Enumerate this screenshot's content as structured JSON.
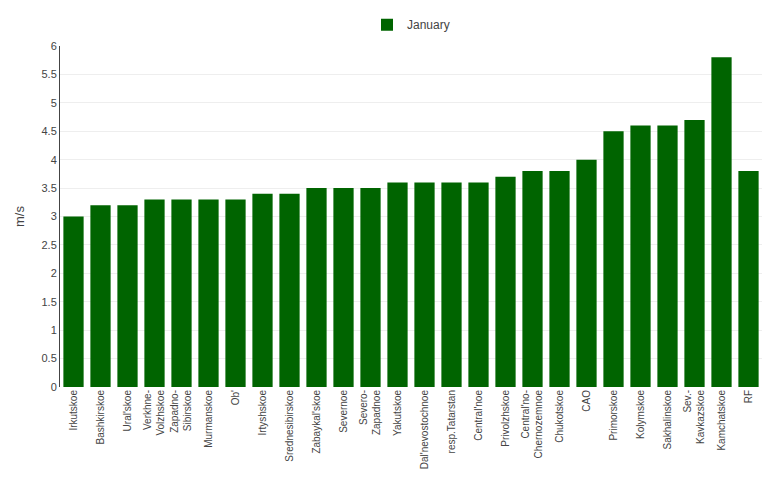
{
  "chart_data": {
    "type": "bar",
    "categories": [
      "Irkutskoe",
      "Bashkirskoe",
      "Ural'skoe",
      "Verkhne-\nVolzhskoe",
      "Zapadno-\nSibirskoe",
      "Murmanskoe",
      "Ob'",
      "Irtyshskoe",
      "Srednesibirskoe",
      "Zabaykal'skoe",
      "Severnoe",
      "Severo-\nZapadnoe",
      "Yakutskoe",
      "Dal'nevostochnoe",
      "resp.Tatarstan",
      "Central'noe",
      "Privolzhskoe",
      "Central'no-\nChernozemnoe",
      "Chukotskoe",
      "CAO",
      "Primorskoe",
      "Kolymskoe",
      "Sakhalinskoe",
      "Sev.-\nKavkazskoe",
      "Kamchatskoe",
      "RF"
    ],
    "series": [
      {
        "name": "January",
        "color": "#006400",
        "values": [
          3.0,
          3.2,
          3.2,
          3.3,
          3.3,
          3.3,
          3.3,
          3.4,
          3.4,
          3.5,
          3.5,
          3.5,
          3.6,
          3.6,
          3.6,
          3.6,
          3.7,
          3.8,
          3.8,
          4.0,
          4.5,
          4.6,
          4.6,
          4.7,
          5.8,
          3.8
        ]
      }
    ],
    "ylabel": "m/s",
    "ylim": [
      0,
      6
    ],
    "yticks": [
      0,
      0.5,
      1,
      1.5,
      2,
      2.5,
      3,
      3.5,
      4,
      4.5,
      5,
      5.5,
      6
    ],
    "grid": true,
    "legend": "upper center"
  }
}
